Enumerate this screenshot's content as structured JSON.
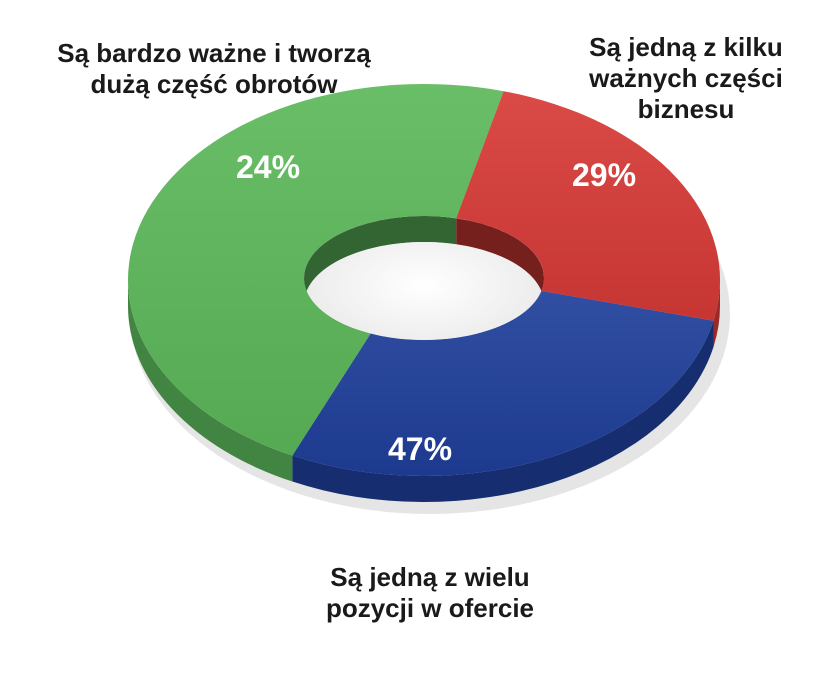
{
  "chart_data": {
    "type": "pie",
    "variant": "donut-3d",
    "title": "",
    "categories": [
      "Są jedną z kilku ważnych części biznesu",
      "Są jedną z wielu pozycji w ofercie",
      "Są bardzo ważne i tworzą dużą część obrotów"
    ],
    "values": [
      29,
      47,
      24
    ],
    "value_labels": [
      "29%",
      "47%",
      "24%"
    ],
    "label_lines": [
      [
        "Są jedną z kilku",
        "ważnych części",
        "biznesu"
      ],
      [
        "Są jedną z wielu",
        "pozycji w ofercie"
      ],
      [
        "Są bardzo ważne i tworzą",
        "dużą część obrotów"
      ]
    ],
    "colors": [
      "#1f3f9a",
      "#5cb85a",
      "#d73a36"
    ],
    "legend": "none",
    "grid": false
  }
}
